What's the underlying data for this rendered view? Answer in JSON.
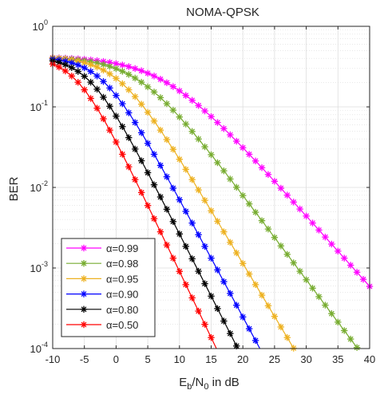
{
  "chart_data": {
    "type": "line",
    "title": "NOMA-QPSK",
    "xlabel": "E_b/N_0 in dB",
    "xlabel_parts": {
      "e": "E",
      "b": "b",
      "slash": "/N",
      "zero": "0",
      "rest": " in dB"
    },
    "ylabel": "BER",
    "x_scale": "linear",
    "y_scale": "log",
    "xlim": [
      -10,
      40
    ],
    "ylim": [
      0.0001,
      1
    ],
    "x_ticks": [
      "-10",
      "-5",
      "0",
      "5",
      "10",
      "15",
      "20",
      "25",
      "30",
      "35",
      "40"
    ],
    "y_ticks": [
      {
        "base": "10",
        "exp": "-4"
      },
      {
        "base": "10",
        "exp": "-3"
      },
      {
        "base": "10",
        "exp": "-2"
      },
      {
        "base": "10",
        "exp": "-1"
      },
      {
        "base": "10",
        "exp": "0"
      }
    ],
    "grid": true,
    "minor_grid": true,
    "legend_position": "bottom-left",
    "marker": "asterisk",
    "x": [
      -10,
      -9,
      -8,
      -7,
      -6,
      -5,
      -4,
      -3,
      -2,
      -1,
      0,
      1,
      2,
      3,
      4,
      5,
      6,
      7,
      8,
      9,
      10,
      11,
      12,
      13,
      14,
      15,
      16,
      17,
      18,
      19,
      20,
      21,
      22,
      23,
      24,
      25,
      26,
      27,
      28,
      29,
      30,
      31,
      32,
      33,
      34,
      35,
      36,
      37,
      38,
      39,
      40
    ],
    "series": [
      {
        "name": "α=0.99",
        "alpha_symbol": "α",
        "value_text": "=0.99",
        "color": "#ff00ff",
        "params": {
          "L": 7.5,
          "k": 3.0
        }
      },
      {
        "name": "α=0.98",
        "alpha_symbol": "α",
        "value_text": "=0.98",
        "color": "#77ac30",
        "params": {
          "L": 3.7,
          "k": 2.5
        }
      },
      {
        "name": "α=0.95",
        "alpha_symbol": "α",
        "value_text": "=0.95",
        "color": "#edb120",
        "params": {
          "L": 0.5,
          "k": 2.0
        }
      },
      {
        "name": "α=0.90",
        "alpha_symbol": "α",
        "value_text": "=0.90",
        "color": "#0000ff",
        "params": {
          "L": -2.1,
          "k": 1.8
        }
      },
      {
        "name": "α=0.80",
        "alpha_symbol": "α",
        "value_text": "=0.80",
        "color": "#000000",
        "params": {
          "L": -4.2,
          "k": 1.7
        }
      },
      {
        "name": "α=0.50",
        "alpha_symbol": "α",
        "value_text": "=0.50",
        "color": "#ff0000",
        "params": {
          "L": -6.2,
          "k": 1.6
        }
      }
    ]
  }
}
